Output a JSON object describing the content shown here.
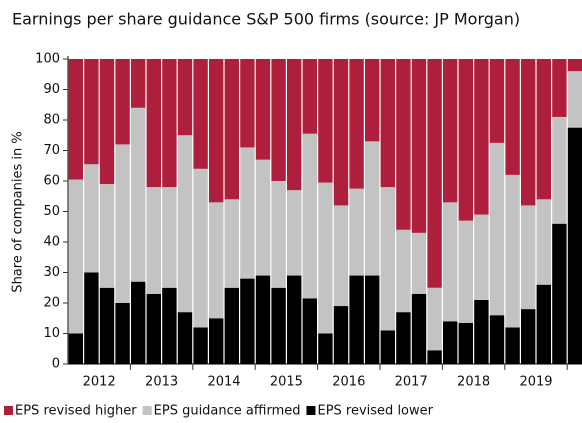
{
  "chart_data": {
    "type": "stacked_bar",
    "title": "Earnings per share guidance S&P 500 firms (source: JP Morgan)",
    "y_label": "Share of companies in %",
    "categories": [
      null,
      null,
      null,
      null,
      null,
      null,
      null,
      null,
      null,
      null,
      null,
      null,
      null,
      null,
      null,
      null,
      null,
      null,
      null,
      null,
      null,
      null,
      null,
      null,
      null,
      null,
      null,
      null,
      null,
      null,
      null,
      null,
      null
    ],
    "year_labels": [
      "2012",
      "2013",
      "2014",
      "2015",
      "2016",
      "2017",
      "2018",
      "2019"
    ],
    "series": [
      {
        "name": "EPS revised higher",
        "color": "#ad1f3d",
        "values": [
          39.5,
          34.5,
          41,
          28,
          16,
          42,
          42,
          25,
          36,
          47,
          46,
          29,
          33,
          40,
          43,
          24.5,
          40.5,
          48,
          42.5,
          27,
          42,
          56,
          57,
          75,
          47,
          53,
          51,
          27.5,
          38,
          48,
          46,
          19,
          4
        ]
      },
      {
        "name": "EPS guidance affirmed",
        "color": "#c3c3c3",
        "values": [
          50.5,
          35.5,
          34,
          52,
          57,
          35,
          33,
          58,
          52,
          38,
          29,
          43,
          38,
          35,
          28,
          54,
          49.5,
          33,
          28.5,
          44,
          47,
          27,
          20,
          20.5,
          39,
          33.5,
          28,
          56.5,
          50,
          34,
          28,
          35,
          18.5
        ]
      },
      {
        "name": "EPS revised lower",
        "color": "#000000",
        "values": [
          10,
          30,
          25,
          20,
          27,
          23,
          25,
          17,
          12,
          15,
          25,
          28,
          29,
          25,
          29,
          21.5,
          10,
          19,
          29,
          29,
          11,
          17,
          23,
          4.5,
          14,
          13.5,
          21,
          16,
          12,
          18,
          26,
          46,
          77.5
        ]
      }
    ],
    "ylim": [
      0,
      100
    ],
    "yticks": [
      0,
      10,
      20,
      30,
      40,
      50,
      60,
      70,
      80,
      90,
      100
    ]
  }
}
